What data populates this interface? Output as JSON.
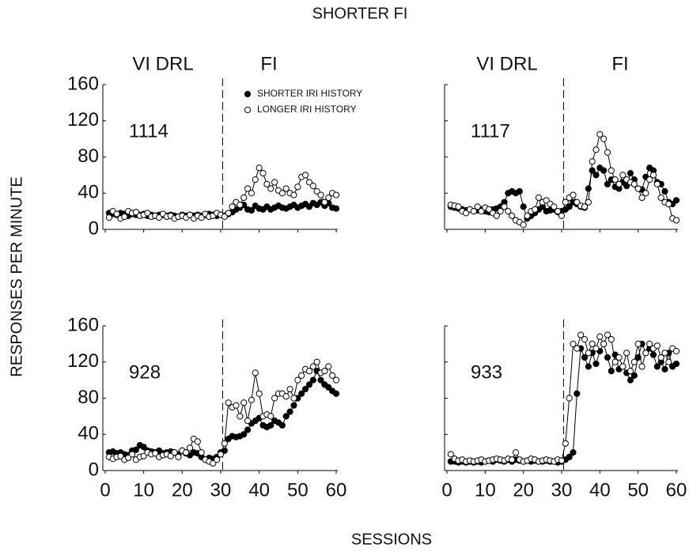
{
  "title": "SHORTER FI",
  "y_label": "RESPONSES PER MINUTE",
  "x_label": "SESSIONS",
  "chart_data": [
    {
      "type": "line",
      "subject": "1114",
      "phase_labels": [
        "VI DRL",
        "FI"
      ],
      "phase_change": 30.5,
      "xlim": [
        0,
        60
      ],
      "ylim": [
        0,
        160
      ],
      "xticks": [
        0,
        10,
        20,
        30,
        40,
        50,
        60
      ],
      "yticks": [
        0,
        40,
        80,
        120,
        160
      ],
      "xtick_labels": false,
      "ytick_labels": true,
      "x": [
        1,
        2,
        3,
        4,
        5,
        6,
        7,
        8,
        9,
        10,
        11,
        12,
        13,
        14,
        15,
        16,
        17,
        18,
        19,
        20,
        21,
        22,
        23,
        24,
        25,
        26,
        27,
        28,
        29,
        30,
        31,
        32,
        33,
        34,
        35,
        36,
        37,
        38,
        39,
        40,
        41,
        42,
        43,
        44,
        45,
        46,
        47,
        48,
        49,
        50,
        51,
        52,
        53,
        54,
        55,
        56,
        57,
        58,
        59,
        60
      ],
      "series": [
        {
          "name": "SHORTER IRI HISTORY",
          "color": "#000000",
          "marker": "filled",
          "values": [
            18,
            17,
            16,
            18,
            17,
            15,
            17,
            16,
            16,
            17,
            15,
            16,
            15,
            16,
            16,
            15,
            16,
            15,
            14,
            16,
            15,
            16,
            15,
            16,
            15,
            16,
            17,
            16,
            15,
            16,
            15,
            17,
            19,
            22,
            24,
            27,
            22,
            21,
            26,
            23,
            22,
            25,
            22,
            24,
            26,
            24,
            23,
            25,
            27,
            24,
            26,
            28,
            25,
            29,
            27,
            30,
            26,
            29,
            24,
            23
          ]
        },
        {
          "name": "LONGER IRI HISTORY",
          "color": "#000000",
          "marker": "open",
          "values": [
            13,
            20,
            17,
            12,
            14,
            20,
            18,
            19,
            15,
            16,
            18,
            14,
            15,
            13,
            17,
            14,
            15,
            12,
            14,
            15,
            13,
            16,
            12,
            15,
            13,
            17,
            14,
            15,
            18,
            16,
            14,
            18,
            25,
            30,
            27,
            35,
            45,
            40,
            55,
            68,
            62,
            50,
            45,
            52,
            43,
            40,
            45,
            40,
            38,
            47,
            58,
            60,
            52,
            48,
            42,
            38,
            30,
            35,
            40,
            38
          ]
        }
      ]
    },
    {
      "type": "line",
      "subject": "1117",
      "phase_labels": [
        "VI DRL",
        "FI"
      ],
      "phase_change": 30.5,
      "xlim": [
        0,
        60
      ],
      "ylim": [
        0,
        160
      ],
      "xticks": [
        0,
        10,
        20,
        30,
        40,
        50,
        60
      ],
      "yticks": [
        0,
        40,
        80,
        120,
        160
      ],
      "xtick_labels": false,
      "ytick_labels": false,
      "x": [
        1,
        2,
        3,
        4,
        5,
        6,
        7,
        8,
        9,
        10,
        11,
        12,
        13,
        14,
        15,
        16,
        17,
        18,
        19,
        20,
        21,
        22,
        23,
        24,
        25,
        26,
        27,
        28,
        29,
        30,
        31,
        32,
        33,
        34,
        35,
        36,
        37,
        38,
        39,
        40,
        41,
        42,
        43,
        44,
        45,
        46,
        47,
        48,
        49,
        50,
        51,
        52,
        53,
        54,
        55,
        56,
        57,
        58,
        59,
        60
      ],
      "series": [
        {
          "color": "#000000",
          "marker": "filled",
          "values": [
            25,
            24,
            23,
            22,
            21,
            22,
            20,
            21,
            22,
            20,
            19,
            22,
            23,
            25,
            30,
            40,
            42,
            40,
            42,
            25,
            12,
            15,
            18,
            22,
            25,
            20,
            21,
            22,
            19,
            20,
            22,
            25,
            30,
            28,
            25,
            24,
            45,
            65,
            60,
            68,
            65,
            50,
            55,
            47,
            45,
            52,
            48,
            62,
            55,
            45,
            44,
            58,
            68,
            65,
            52,
            50,
            42,
            30,
            28,
            32
          ]
        },
        {
          "color": "#000000",
          "marker": "open",
          "values": [
            27,
            26,
            25,
            20,
            18,
            22,
            20,
            25,
            20,
            24,
            22,
            18,
            15,
            20,
            25,
            20,
            15,
            10,
            8,
            5,
            15,
            20,
            22,
            35,
            30,
            32,
            28,
            25,
            20,
            15,
            30,
            35,
            38,
            30,
            26,
            25,
            30,
            75,
            88,
            105,
            100,
            85,
            65,
            55,
            50,
            60,
            55,
            52,
            50,
            45,
            35,
            40,
            55,
            60,
            50,
            35,
            30,
            28,
            12,
            10
          ]
        }
      ]
    },
    {
      "type": "line",
      "subject": "928",
      "phase_labels": [],
      "phase_change": 30.5,
      "xlim": [
        0,
        60
      ],
      "ylim": [
        0,
        160
      ],
      "xticks": [
        0,
        10,
        20,
        30,
        40,
        50,
        60
      ],
      "yticks": [
        0,
        40,
        80,
        120,
        160
      ],
      "xtick_labels": true,
      "ytick_labels": true,
      "x": [
        1,
        2,
        3,
        4,
        5,
        6,
        7,
        8,
        9,
        10,
        11,
        12,
        13,
        14,
        15,
        16,
        17,
        18,
        19,
        20,
        21,
        22,
        23,
        24,
        25,
        26,
        27,
        28,
        29,
        30,
        31,
        32,
        33,
        34,
        35,
        36,
        37,
        38,
        39,
        40,
        41,
        42,
        43,
        44,
        45,
        46,
        47,
        48,
        49,
        50,
        51,
        52,
        53,
        54,
        55,
        56,
        57,
        58,
        59,
        60
      ],
      "series": [
        {
          "color": "#000000",
          "marker": "filled",
          "values": [
            20,
            21,
            19,
            20,
            18,
            17,
            22,
            23,
            28,
            26,
            22,
            21,
            20,
            22,
            19,
            20,
            21,
            20,
            18,
            22,
            19,
            17,
            20,
            19,
            15,
            12,
            14,
            13,
            15,
            20,
            22,
            35,
            38,
            37,
            38,
            40,
            45,
            52,
            55,
            58,
            50,
            48,
            50,
            55,
            53,
            50,
            60,
            65,
            72,
            80,
            85,
            90,
            95,
            100,
            110,
            100,
            95,
            92,
            88,
            85
          ]
        },
        {
          "color": "#000000",
          "marker": "open",
          "values": [
            15,
            13,
            15,
            16,
            12,
            14,
            18,
            12,
            15,
            16,
            20,
            18,
            19,
            15,
            17,
            18,
            16,
            20,
            15,
            22,
            20,
            25,
            35,
            32,
            20,
            12,
            10,
            8,
            12,
            18,
            30,
            75,
            70,
            72,
            60,
            75,
            55,
            78,
            108,
            85,
            60,
            62,
            60,
            80,
            85,
            85,
            82,
            90,
            80,
            100,
            105,
            112,
            110,
            115,
            120,
            108,
            110,
            115,
            105,
            100
          ]
        }
      ]
    },
    {
      "type": "line",
      "subject": "933",
      "phase_labels": [],
      "phase_change": 30.5,
      "xlim": [
        0,
        60
      ],
      "ylim": [
        0,
        160
      ],
      "xticks": [
        0,
        10,
        20,
        30,
        40,
        50,
        60
      ],
      "yticks": [
        0,
        40,
        80,
        120,
        160
      ],
      "xtick_labels": true,
      "ytick_labels": false,
      "x": [
        1,
        2,
        3,
        4,
        5,
        6,
        7,
        8,
        9,
        10,
        11,
        12,
        13,
        14,
        15,
        16,
        17,
        18,
        19,
        20,
        21,
        22,
        23,
        24,
        25,
        26,
        27,
        28,
        29,
        30,
        31,
        32,
        33,
        34,
        35,
        36,
        37,
        38,
        39,
        40,
        41,
        42,
        43,
        44,
        45,
        46,
        47,
        48,
        49,
        50,
        51,
        52,
        53,
        54,
        55,
        56,
        57,
        58,
        59,
        60
      ],
      "series": [
        {
          "color": "#000000",
          "marker": "filled",
          "values": [
            10,
            10,
            9,
            10,
            9,
            10,
            9,
            10,
            9,
            10,
            11,
            10,
            12,
            11,
            10,
            12,
            10,
            12,
            11,
            10,
            11,
            10,
            11,
            10,
            10,
            11,
            10,
            10,
            9,
            10,
            12,
            15,
            20,
            85,
            135,
            125,
            115,
            130,
            118,
            132,
            140,
            125,
            110,
            128,
            112,
            115,
            108,
            100,
            105,
            125,
            140,
            130,
            135,
            128,
            115,
            120,
            112,
            130,
            115,
            118
          ]
        },
        {
          "color": "#000000",
          "marker": "open",
          "values": [
            18,
            13,
            11,
            12,
            10,
            11,
            10,
            11,
            12,
            10,
            11,
            12,
            13,
            12,
            11,
            13,
            12,
            20,
            12,
            10,
            11,
            13,
            12,
            10,
            11,
            12,
            11,
            10,
            12,
            11,
            30,
            80,
            140,
            135,
            150,
            145,
            130,
            140,
            135,
            148,
            140,
            150,
            145,
            120,
            125,
            115,
            130,
            110,
            120,
            140,
            115,
            130,
            140,
            135,
            138,
            125,
            130,
            120,
            135,
            132
          ]
        }
      ]
    }
  ]
}
